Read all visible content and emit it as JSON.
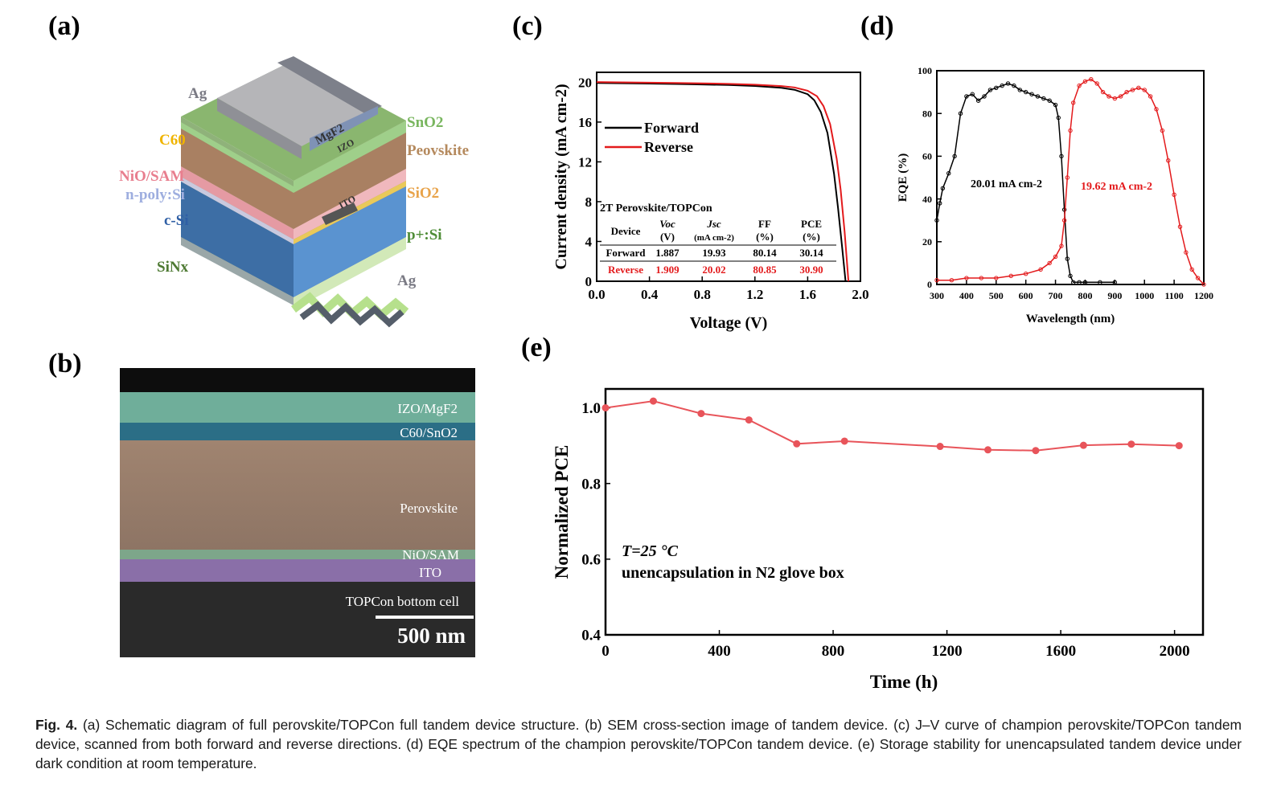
{
  "panels": {
    "a": "(a)",
    "b": "(b)",
    "c": "(c)",
    "d": "(d)",
    "e": "(e)"
  },
  "schematic": {
    "labels_left": [
      "Ag",
      "C60",
      "NiO/SAM",
      "n-poly:Si",
      "c-Si",
      "SiNx"
    ],
    "labels_right": [
      "SnO2",
      "Peovskite",
      "SiO2",
      "p+:Si",
      "Ag"
    ],
    "on_device": [
      "MgF2",
      "IZO",
      "ITO"
    ]
  },
  "sem": {
    "layers": [
      "IZO/MgF2",
      "C60/SnO2",
      "Perovskite",
      "NiO/SAM",
      "ITO",
      "TOPCon bottom cell"
    ],
    "scale_bar": "500 nm"
  },
  "jv": {
    "colors": {
      "forward": "#000000",
      "reverse": "#e31a1c"
    },
    "table_title": "2T Perovskite/TOPCon",
    "headers": [
      "Device",
      "Voc",
      "Jsc",
      "FF",
      "PCE"
    ],
    "units": [
      "",
      "(V)",
      "(mA cm-2)",
      "(%)",
      "(%)"
    ],
    "rows": [
      [
        "Forward",
        "1.887",
        "19.93",
        "80.14",
        "30.14"
      ],
      [
        "Reverse",
        "1.909",
        "20.02",
        "80.85",
        "30.90"
      ]
    ]
  },
  "eqe": {
    "annot_black": "20.01 mA cm-2",
    "annot_red": "19.62 mA cm-2"
  },
  "stability": {
    "annot_line1": "T=25 °C",
    "annot_line2": "unencapsulation in N2 glove box",
    "color": "#e8545a"
  },
  "chart_data": [
    {
      "id": "c",
      "type": "line",
      "xlabel": "Voltage (V)",
      "ylabel": "Current density (mA cm-2)",
      "xlim": [
        0,
        2.0
      ],
      "ylim": [
        0,
        21
      ],
      "xticks": [
        0.0,
        0.4,
        0.8,
        1.2,
        1.6,
        2.0
      ],
      "yticks": [
        0,
        4,
        8,
        12,
        16,
        20
      ],
      "legend": "upper-left",
      "series": [
        {
          "name": "Forward",
          "x": [
            0,
            0.2,
            0.4,
            0.6,
            0.8,
            1.0,
            1.2,
            1.4,
            1.5,
            1.6,
            1.65,
            1.7,
            1.75,
            1.8,
            1.83,
            1.86,
            1.887
          ],
          "y": [
            19.93,
            19.9,
            19.87,
            19.83,
            19.78,
            19.72,
            19.63,
            19.45,
            19.25,
            18.8,
            18.2,
            17.0,
            14.9,
            10.8,
            7.4,
            3.6,
            0
          ]
        },
        {
          "name": "Reverse",
          "x": [
            0,
            0.2,
            0.4,
            0.6,
            0.8,
            1.0,
            1.2,
            1.4,
            1.5,
            1.6,
            1.67,
            1.72,
            1.77,
            1.82,
            1.85,
            1.88,
            1.909
          ],
          "y": [
            20.02,
            19.99,
            19.96,
            19.93,
            19.89,
            19.84,
            19.76,
            19.62,
            19.48,
            19.15,
            18.6,
            17.6,
            15.8,
            12.3,
            9.2,
            5.0,
            0
          ]
        }
      ]
    },
    {
      "id": "d",
      "type": "line",
      "xlabel": "Wavelength (nm)",
      "ylabel": "EQE (%)",
      "xlim": [
        300,
        1200
      ],
      "ylim": [
        0,
        100
      ],
      "xticks": [
        300,
        400,
        500,
        600,
        700,
        800,
        900,
        1000,
        1100,
        1200
      ],
      "yticks": [
        0,
        20,
        40,
        60,
        80,
        100
      ],
      "series": [
        {
          "name": "Perovskite (20.01 mA cm-2)",
          "x": [
            300,
            310,
            320,
            340,
            360,
            380,
            400,
            420,
            440,
            460,
            480,
            500,
            520,
            540,
            560,
            580,
            600,
            620,
            640,
            660,
            680,
            700,
            710,
            720,
            730,
            740,
            750,
            760,
            780,
            800,
            850,
            900
          ],
          "y": [
            30,
            38,
            45,
            52,
            60,
            80,
            88,
            89,
            86,
            88,
            91,
            92,
            93,
            94,
            93,
            91,
            90,
            89,
            88,
            87,
            86,
            84,
            78,
            60,
            35,
            12,
            4,
            1,
            1,
            1,
            1,
            1
          ]
        },
        {
          "name": "TOPCon (19.62 mA cm-2)",
          "x": [
            300,
            350,
            400,
            450,
            500,
            550,
            600,
            650,
            680,
            700,
            720,
            730,
            740,
            750,
            760,
            780,
            800,
            820,
            840,
            860,
            880,
            900,
            920,
            940,
            960,
            980,
            1000,
            1020,
            1040,
            1060,
            1080,
            1100,
            1120,
            1140,
            1160,
            1180,
            1200
          ],
          "y": [
            2,
            2,
            3,
            3,
            3,
            4,
            5,
            7,
            10,
            13,
            18,
            30,
            50,
            72,
            85,
            93,
            95,
            96,
            94,
            90,
            88,
            87,
            88,
            90,
            91,
            92,
            91,
            88,
            82,
            72,
            58,
            42,
            27,
            15,
            7,
            3,
            0
          ]
        }
      ]
    },
    {
      "id": "e",
      "type": "line",
      "xlabel": "Time (h)",
      "ylabel": "Normalized PCE",
      "xlim": [
        0,
        2100
      ],
      "ylim": [
        0.4,
        1.05
      ],
      "xticks": [
        0,
        400,
        800,
        1200,
        1600,
        2000
      ],
      "yticks": [
        0.4,
        0.6,
        0.8,
        1.0
      ],
      "series": [
        {
          "name": "Normalized PCE",
          "x": [
            0,
            168,
            336,
            504,
            672,
            840,
            1176,
            1344,
            1512,
            1680,
            1848,
            2016
          ],
          "y": [
            1.0,
            1.018,
            0.985,
            0.968,
            0.905,
            0.912,
            0.898,
            0.889,
            0.887,
            0.901,
            0.904,
            0.9
          ]
        }
      ]
    }
  ],
  "caption": {
    "label": "Fig. 4.",
    "text": " (a) Schematic diagram of full perovskite/TOPCon full tandem device structure. (b) SEM cross-section image of tandem device. (c) J–V curve of champion perovskite/TOPCon tandem device, scanned from both forward and reverse directions. (d) EQE spectrum of the champion perovskite/TOPCon tandem device. (e) Storage stability for unencapsulated tandem device under dark condition at room temperature."
  }
}
